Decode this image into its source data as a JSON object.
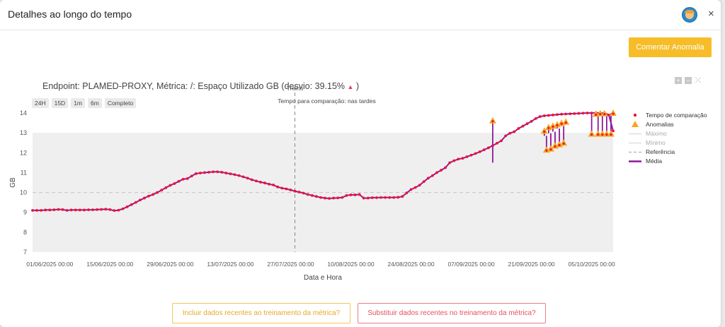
{
  "modal": {
    "title": "Detalhes ao longo do tempo",
    "close_icon": "×"
  },
  "actions": {
    "comment_label": "Comentar Anomalia",
    "include_label": "Incluir dados recentes ao treinamento da métrica?",
    "replace_label": "Substituir dados recentes no treinamento da métrica?"
  },
  "chart": {
    "title": "Endpoint: PLAMED-PROXY, Métrica: /: Espaço Utilizado GB (desvio: 39.15%",
    "title_end": ")",
    "up_arrow": "▲",
    "range_buttons": [
      "24H",
      "15D",
      "1m",
      "6m",
      "Completo"
    ],
    "training_label": "Treino",
    "comparison_note": "Tempo para comparação: nas tardes",
    "xlabel": "Data e Hora",
    "ylabel": "GB"
  },
  "legend": {
    "comparison": "Tempo de comparação",
    "anomalies": "Anomalias",
    "max": "Máximo",
    "min": "Mínimo",
    "reference": "Referência",
    "mean": "Média"
  },
  "colors": {
    "points": "#ee1133",
    "anomaly": "#f5a623",
    "mean": "#8c1a9c",
    "band": "#efefef",
    "reference": "#c8c8c8",
    "accent": "#f6bd29"
  },
  "chart_data": {
    "type": "line",
    "xlabel": "Data e Hora",
    "ylabel": "GB",
    "ylim": [
      7,
      14
    ],
    "yticks": [
      7,
      8,
      9,
      10,
      11,
      12,
      13,
      14
    ],
    "x_start_day": -4,
    "x_end_day": 131,
    "xtick_days": [
      0,
      14,
      28,
      42,
      56,
      70,
      84,
      98,
      112,
      126
    ],
    "xtick_labels": [
      "01/06/2025 00:00",
      "15/06/2025 00:00",
      "29/06/2025 00:00",
      "13/07/2025 00:00",
      "27/07/2025 00:00",
      "10/08/2025 00:00",
      "24/08/2025 00:00",
      "07/09/2025 00:00",
      "21/09/2025 00:00",
      "05/10/2025 00:00"
    ],
    "band": {
      "min": 7,
      "max": 13
    },
    "reference": 10,
    "training_split_day": 57,
    "series_days": [
      -4,
      -3,
      -2,
      -1,
      0,
      1,
      2,
      3,
      4,
      5,
      6,
      7,
      8,
      9,
      10,
      11,
      12,
      13,
      14,
      15,
      16,
      17,
      18,
      19,
      20,
      21,
      22,
      23,
      24,
      25,
      26,
      27,
      28,
      29,
      30,
      31,
      32,
      33,
      34,
      35,
      36,
      37,
      38,
      39,
      40,
      41,
      42,
      43,
      44,
      45,
      46,
      47,
      48,
      49,
      50,
      51,
      52,
      53,
      54,
      55,
      56,
      57,
      58,
      59,
      60,
      61,
      62,
      63,
      64,
      65,
      66,
      67,
      68,
      69,
      70,
      71,
      72,
      73,
      74,
      75,
      76,
      77,
      78,
      79,
      80,
      81,
      82,
      83,
      84,
      85,
      86,
      87,
      88,
      89,
      90,
      91,
      92,
      93,
      94,
      95,
      96,
      97,
      98,
      99,
      100,
      101,
      102,
      103,
      104,
      105,
      106,
      107,
      108,
      109,
      110,
      111,
      112,
      113,
      114,
      115,
      116,
      117,
      118,
      119,
      120,
      121,
      122,
      123,
      124,
      125,
      126,
      127,
      128,
      129,
      130,
      131
    ],
    "series_values": [
      9.1,
      9.1,
      9.1,
      9.12,
      9.12,
      9.13,
      9.15,
      9.14,
      9.1,
      9.12,
      9.12,
      9.12,
      9.12,
      9.13,
      9.13,
      9.14,
      9.15,
      9.16,
      9.14,
      9.09,
      9.11,
      9.18,
      9.28,
      9.39,
      9.5,
      9.62,
      9.72,
      9.82,
      9.9,
      10.0,
      10.12,
      10.24,
      10.36,
      10.45,
      10.56,
      10.67,
      10.7,
      10.83,
      10.95,
      10.98,
      11.0,
      11.02,
      11.04,
      11.04,
      11.02,
      10.98,
      10.94,
      10.9,
      10.85,
      10.79,
      10.72,
      10.64,
      10.58,
      10.52,
      10.48,
      10.42,
      10.38,
      10.28,
      10.22,
      10.18,
      10.13,
      10.07,
      10.02,
      9.97,
      9.9,
      9.85,
      9.8,
      9.75,
      9.72,
      9.7,
      9.72,
      9.73,
      9.75,
      9.85,
      9.88,
      9.88,
      9.9,
      9.72,
      9.72,
      9.74,
      9.74,
      9.75,
      9.75,
      9.75,
      9.75,
      9.76,
      9.8,
      9.98,
      10.15,
      10.25,
      10.37,
      10.55,
      10.72,
      10.85,
      11.0,
      11.12,
      11.25,
      11.5,
      11.6,
      11.68,
      11.72,
      11.8,
      11.88,
      11.96,
      12.05,
      12.15,
      12.25,
      12.36,
      12.48,
      12.6,
      12.85,
      12.98,
      13.06,
      13.22,
      13.34,
      13.46,
      13.58,
      13.72,
      13.82,
      13.86,
      13.88,
      13.9,
      13.92,
      13.94,
      13.95,
      13.96,
      13.97,
      13.98,
      13.99,
      14.0,
      14.0,
      14.01,
      14.0,
      14.0,
      13.9,
      13.1
    ],
    "anomalies": [
      {
        "day": 103,
        "value": 13.62,
        "mean": 11.5
      },
      {
        "day": 115,
        "value": 13.1,
        "mean": 12.85
      },
      {
        "day": 115.5,
        "value": 12.15,
        "mean": 12.85
      },
      {
        "day": 116,
        "value": 13.28,
        "mean": 12.98
      },
      {
        "day": 116.5,
        "value": 12.2,
        "mean": 12.98
      },
      {
        "day": 117,
        "value": 13.35,
        "mean": 13.06
      },
      {
        "day": 117.5,
        "value": 12.35,
        "mean": 13.06
      },
      {
        "day": 118,
        "value": 13.42,
        "mean": 13.22
      },
      {
        "day": 118.5,
        "value": 12.42,
        "mean": 13.22
      },
      {
        "day": 119,
        "value": 13.5,
        "mean": 13.34
      },
      {
        "day": 119.5,
        "value": 12.5,
        "mean": 13.34
      },
      {
        "day": 120,
        "value": 13.55,
        "mean": 13.46
      },
      {
        "day": 126,
        "value": 12.95,
        "mean": 13.96
      },
      {
        "day": 127,
        "value": 13.95,
        "mean": 13.97
      },
      {
        "day": 127.5,
        "value": 12.95,
        "mean": 13.97
      },
      {
        "day": 128,
        "value": 13.98,
        "mean": 13.98
      },
      {
        "day": 128.5,
        "value": 12.95,
        "mean": 13.98
      },
      {
        "day": 129,
        "value": 13.98,
        "mean": 13.99
      },
      {
        "day": 129.5,
        "value": 12.95,
        "mean": 13.99
      },
      {
        "day": 130.5,
        "value": 12.95,
        "mean": 14.0
      },
      {
        "day": 131,
        "value": 14.0,
        "mean": 14.0
      }
    ]
  }
}
